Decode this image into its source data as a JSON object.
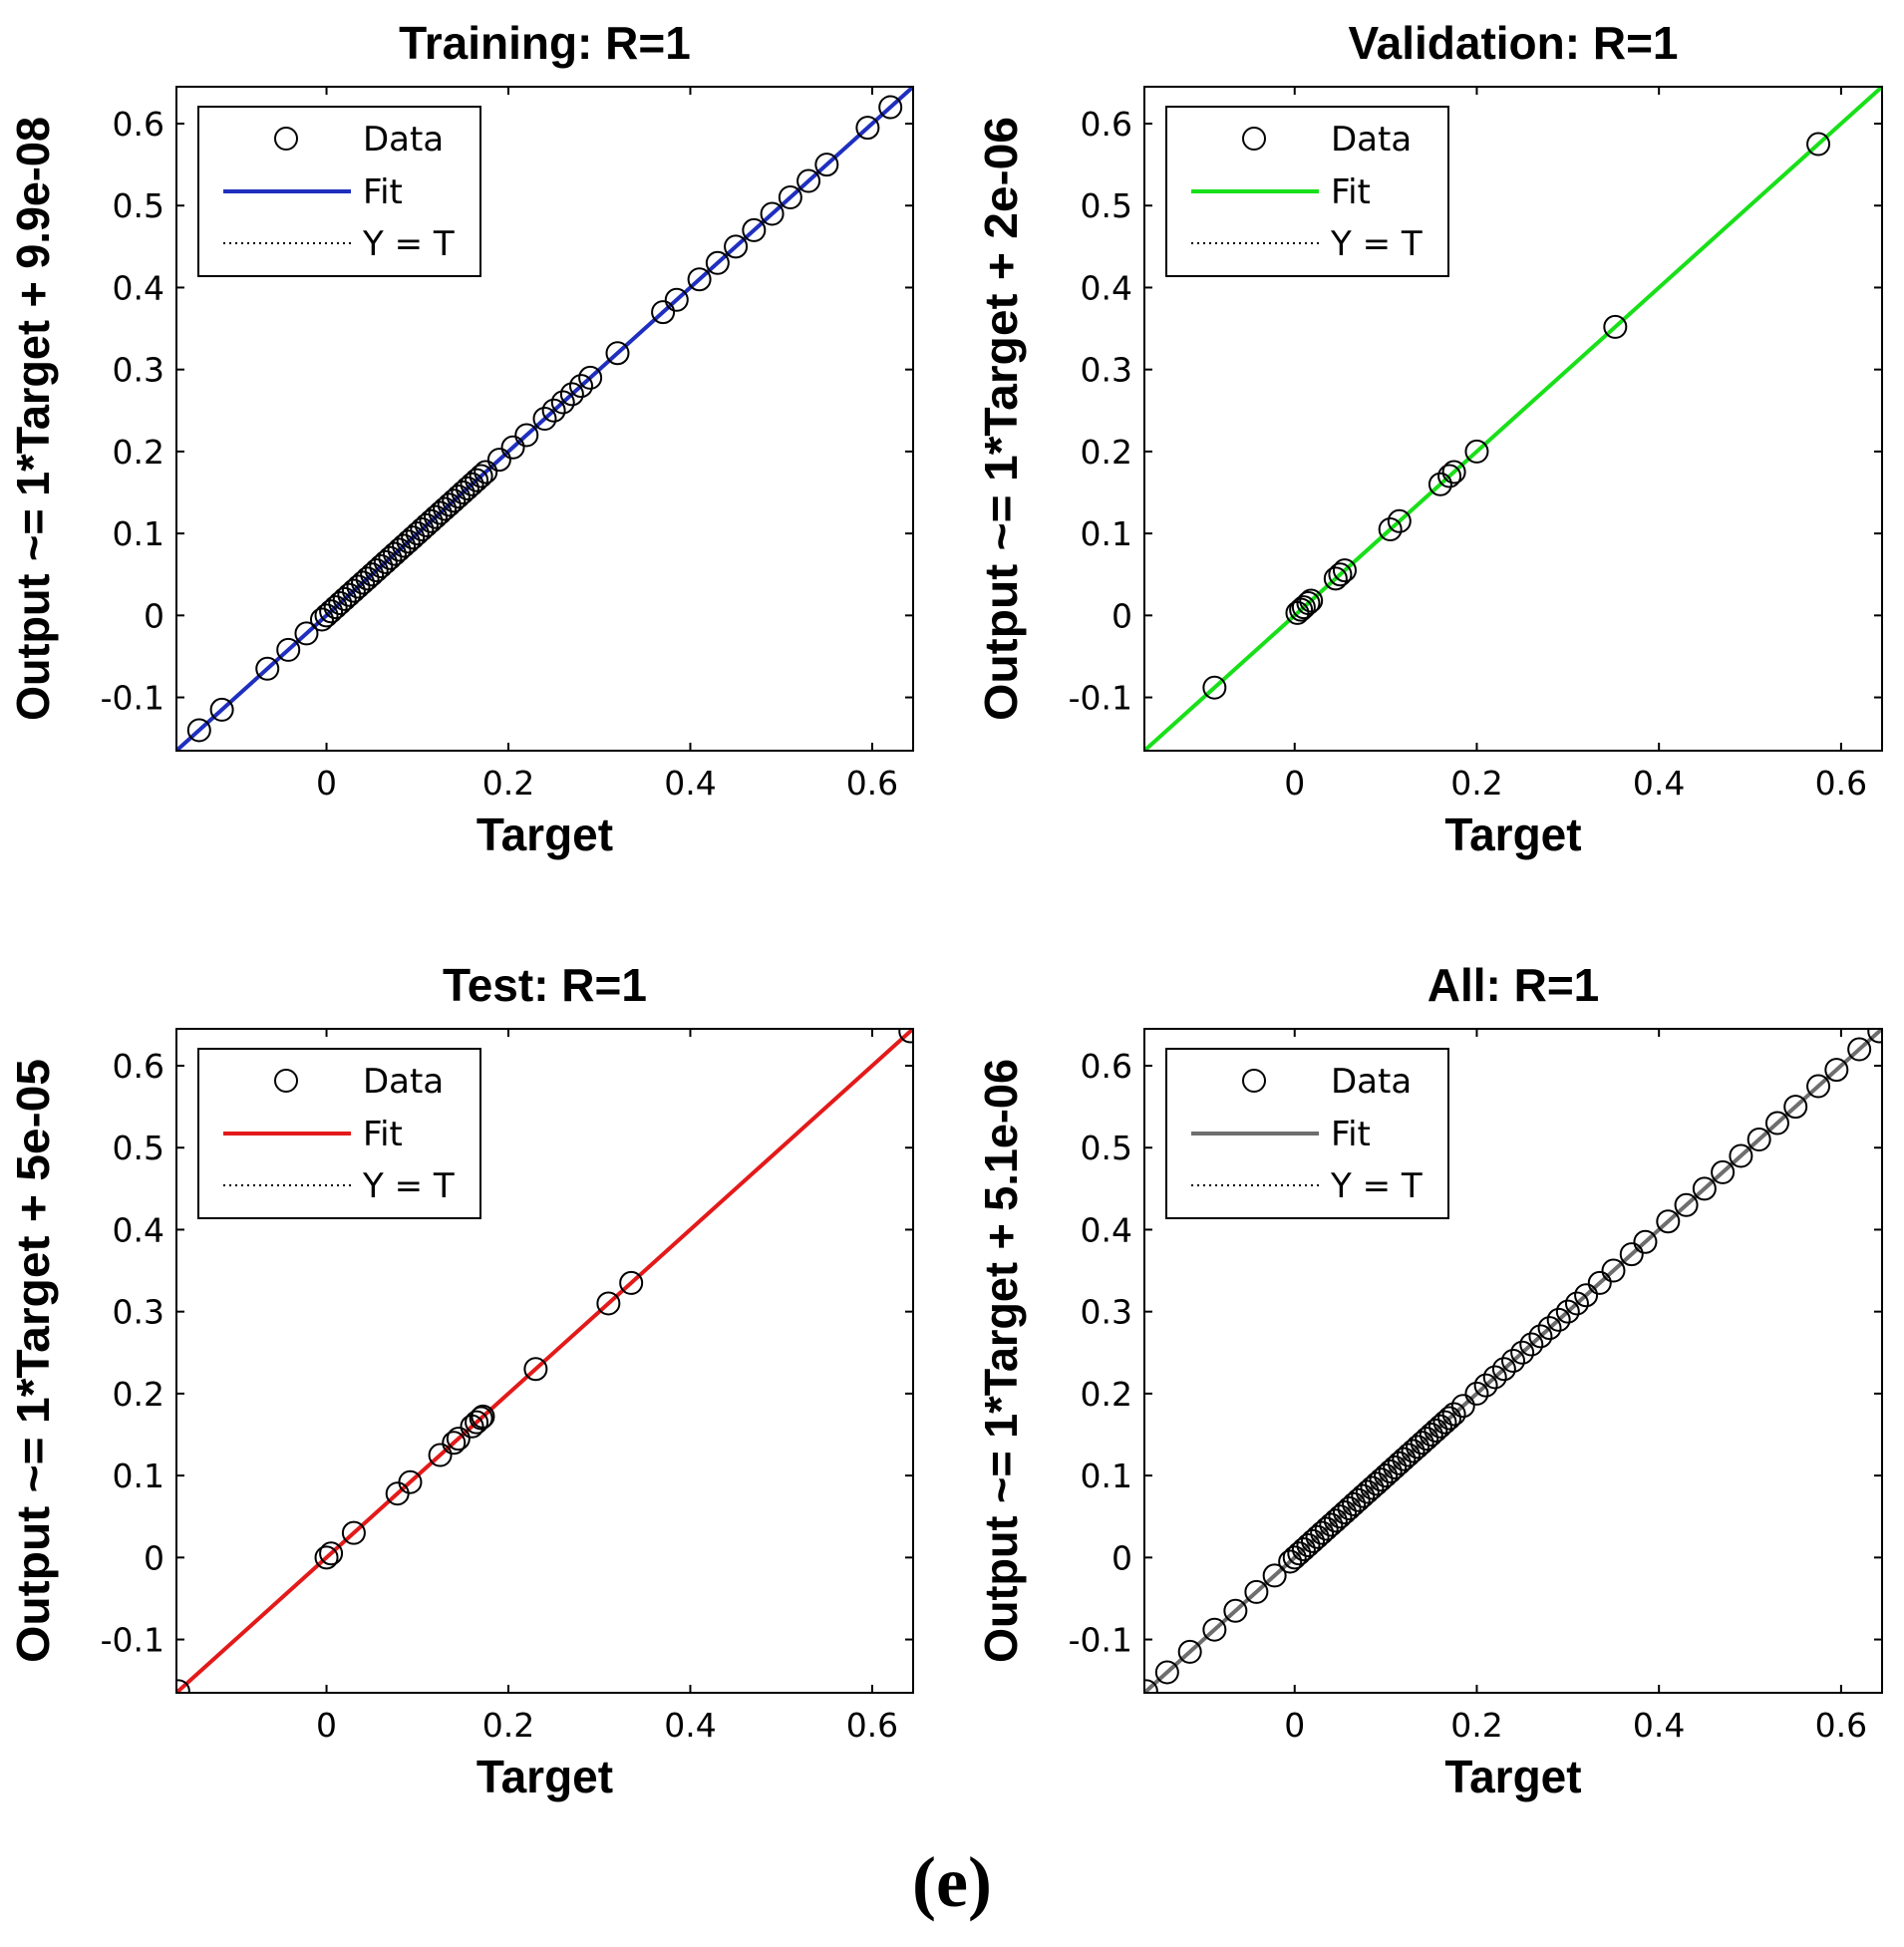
{
  "figure_caption": "(e)",
  "chart_data": [
    {
      "type": "scatter",
      "title": "Training: R=1",
      "xlabel": "Target",
      "ylabel": "Output ~= 1*Target + 9.9e-08",
      "xlim": [
        -0.165,
        0.645
      ],
      "ylim": [
        -0.165,
        0.645
      ],
      "xticks": [
        0,
        0.2,
        0.4,
        0.6
      ],
      "xtick_labels": [
        "0",
        "0.2",
        "0.4",
        "0.6"
      ],
      "yticks": [
        -0.1,
        0,
        0.1,
        0.2,
        0.3,
        0.4,
        0.5,
        0.6
      ],
      "ytick_labels": [
        "-0.1",
        "0",
        "0.1",
        "0.2",
        "0.3",
        "0.4",
        "0.5",
        "0.6"
      ],
      "fit_color": "#1f2fbf",
      "fit": {
        "slope": 1,
        "intercept": 9.9e-08
      },
      "legend": {
        "position": "top-left",
        "entries": [
          "Data",
          "Fit",
          "Y = T"
        ]
      },
      "points": [
        -0.14,
        -0.115,
        -0.065,
        -0.042,
        -0.022,
        -0.005,
        0.0,
        0.005,
        0.01,
        0.015,
        0.02,
        0.025,
        0.03,
        0.035,
        0.04,
        0.045,
        0.05,
        0.055,
        0.06,
        0.065,
        0.07,
        0.075,
        0.08,
        0.085,
        0.09,
        0.095,
        0.1,
        0.105,
        0.11,
        0.115,
        0.12,
        0.125,
        0.13,
        0.135,
        0.14,
        0.145,
        0.15,
        0.155,
        0.16,
        0.165,
        0.17,
        0.175,
        0.19,
        0.205,
        0.22,
        0.24,
        0.25,
        0.26,
        0.27,
        0.28,
        0.29,
        0.32,
        0.37,
        0.385,
        0.41,
        0.43,
        0.45,
        0.47,
        0.49,
        0.51,
        0.53,
        0.55,
        0.595,
        0.62
      ]
    },
    {
      "type": "scatter",
      "title": "Validation: R=1",
      "xlabel": "Target",
      "ylabel": "Output ~= 1*Target + 2e-06",
      "xlim": [
        -0.165,
        0.645
      ],
      "ylim": [
        -0.165,
        0.645
      ],
      "xticks": [
        0,
        0.2,
        0.4,
        0.6
      ],
      "xtick_labels": [
        "0",
        "0.2",
        "0.4",
        "0.6"
      ],
      "yticks": [
        -0.1,
        0,
        0.1,
        0.2,
        0.3,
        0.4,
        0.5,
        0.6
      ],
      "ytick_labels": [
        "-0.1",
        "0",
        "0.1",
        "0.2",
        "0.3",
        "0.4",
        "0.5",
        "0.6"
      ],
      "fit_color": "#18e018",
      "fit": {
        "slope": 1,
        "intercept": 2e-06
      },
      "legend": {
        "position": "top-left",
        "entries": [
          "Data",
          "Fit",
          "Y = T"
        ]
      },
      "points": [
        -0.088,
        0.003,
        0.007,
        0.01,
        0.015,
        0.018,
        0.045,
        0.05,
        0.055,
        0.105,
        0.115,
        0.16,
        0.17,
        0.175,
        0.2,
        0.352,
        0.575
      ]
    },
    {
      "type": "scatter",
      "title": "Test: R=1",
      "xlabel": "Target",
      "ylabel": "Output ~= 1*Target + 5e-05",
      "xlim": [
        -0.165,
        0.645
      ],
      "ylim": [
        -0.165,
        0.645
      ],
      "xticks": [
        0,
        0.2,
        0.4,
        0.6
      ],
      "xtick_labels": [
        "0",
        "0.2",
        "0.4",
        "0.6"
      ],
      "yticks": [
        -0.1,
        0,
        0.1,
        0.2,
        0.3,
        0.4,
        0.5,
        0.6
      ],
      "ytick_labels": [
        "-0.1",
        "0",
        "0.1",
        "0.2",
        "0.3",
        "0.4",
        "0.5",
        "0.6"
      ],
      "fit_color": "#e31a1a",
      "fit": {
        "slope": 1,
        "intercept": 5e-05
      },
      "legend": {
        "position": "top-left",
        "entries": [
          "Data",
          "Fit",
          "Y = T"
        ]
      },
      "points": [
        -0.163,
        0.0,
        0.005,
        0.03,
        0.078,
        0.092,
        0.125,
        0.14,
        0.145,
        0.16,
        0.165,
        0.17,
        0.172,
        0.23,
        0.31,
        0.335,
        0.642
      ]
    },
    {
      "type": "scatter",
      "title": "All: R=1",
      "xlabel": "Target",
      "ylabel": "Output ~= 1*Target + 5.1e-06",
      "xlim": [
        -0.165,
        0.645
      ],
      "ylim": [
        -0.165,
        0.645
      ],
      "xticks": [
        0,
        0.2,
        0.4,
        0.6
      ],
      "xtick_labels": [
        "0",
        "0.2",
        "0.4",
        "0.6"
      ],
      "yticks": [
        -0.1,
        0,
        0.1,
        0.2,
        0.3,
        0.4,
        0.5,
        0.6
      ],
      "ytick_labels": [
        "-0.1",
        "0",
        "0.1",
        "0.2",
        "0.3",
        "0.4",
        "0.5",
        "0.6"
      ],
      "fit_color": "#6e6e6e",
      "fit": {
        "slope": 1,
        "intercept": 5.1e-06
      },
      "legend": {
        "position": "top-left",
        "entries": [
          "Data",
          "Fit",
          "Y = T"
        ]
      },
      "points": [
        -0.163,
        -0.14,
        -0.115,
        -0.088,
        -0.065,
        -0.042,
        -0.022,
        -0.005,
        0.0,
        0.005,
        0.01,
        0.015,
        0.02,
        0.025,
        0.03,
        0.035,
        0.04,
        0.045,
        0.05,
        0.055,
        0.06,
        0.065,
        0.07,
        0.075,
        0.08,
        0.085,
        0.09,
        0.095,
        0.1,
        0.105,
        0.11,
        0.115,
        0.12,
        0.125,
        0.13,
        0.135,
        0.14,
        0.145,
        0.15,
        0.155,
        0.16,
        0.165,
        0.17,
        0.175,
        0.185,
        0.2,
        0.21,
        0.22,
        0.23,
        0.24,
        0.25,
        0.26,
        0.27,
        0.28,
        0.29,
        0.3,
        0.31,
        0.32,
        0.335,
        0.35,
        0.37,
        0.385,
        0.41,
        0.43,
        0.45,
        0.47,
        0.49,
        0.51,
        0.53,
        0.55,
        0.575,
        0.595,
        0.62,
        0.642
      ]
    }
  ]
}
